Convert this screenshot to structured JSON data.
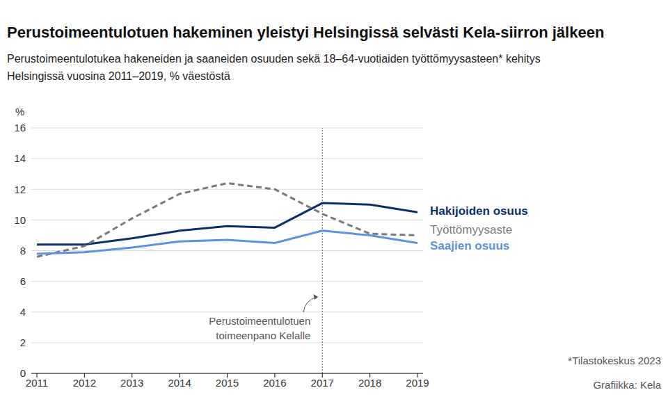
{
  "chart_data": {
    "type": "line",
    "title": "Perustoimeentulotuen hakeminen yleistyi Helsingissä selvästi Kela-siirron jälkeen",
    "subtitle": [
      "Perustoimeentulotukea hakeneiden ja saaneiden osuuden sekä 18–64-vuotiaiden työttömyysasteen* kehitys",
      "Helsingissä vuosina 2011–2019, % väestöstä"
    ],
    "ylabel": "%",
    "x": [
      2011,
      2012,
      2013,
      2014,
      2015,
      2016,
      2017,
      2018,
      2019
    ],
    "xlim": [
      2011,
      2019
    ],
    "xticks": [
      2011,
      2012,
      2013,
      2014,
      2015,
      2016,
      2017,
      2018,
      2019
    ],
    "ylim": [
      0,
      16
    ],
    "yticks": [
      0,
      2,
      4,
      6,
      8,
      10,
      12,
      14,
      16
    ],
    "grid": true,
    "series": [
      {
        "name": "Hakijoiden osuus",
        "color": "#0b2f6b",
        "line_style": "solid",
        "values": [
          8.4,
          8.4,
          8.8,
          9.3,
          9.6,
          9.5,
          11.1,
          11.0,
          10.5
        ]
      },
      {
        "name": "Työttömyysaste",
        "color": "#7a7a7a",
        "line_style": "dashed",
        "values": [
          7.6,
          8.3,
          10.1,
          11.7,
          12.4,
          12.0,
          10.4,
          9.1,
          9.0
        ]
      },
      {
        "name": "Saajien osuus",
        "color": "#5b93e0",
        "line_style": "solid",
        "values": [
          7.8,
          7.9,
          8.2,
          8.6,
          8.7,
          8.5,
          9.3,
          9.0,
          8.5
        ]
      }
    ],
    "annotation": {
      "x": 2017,
      "text": [
        "Perustoimeentulotuen",
        "toimeenpano Kelalle"
      ]
    },
    "source": [
      "*Tilastokeskus 2023",
      "Grafiikka: Kela"
    ]
  }
}
